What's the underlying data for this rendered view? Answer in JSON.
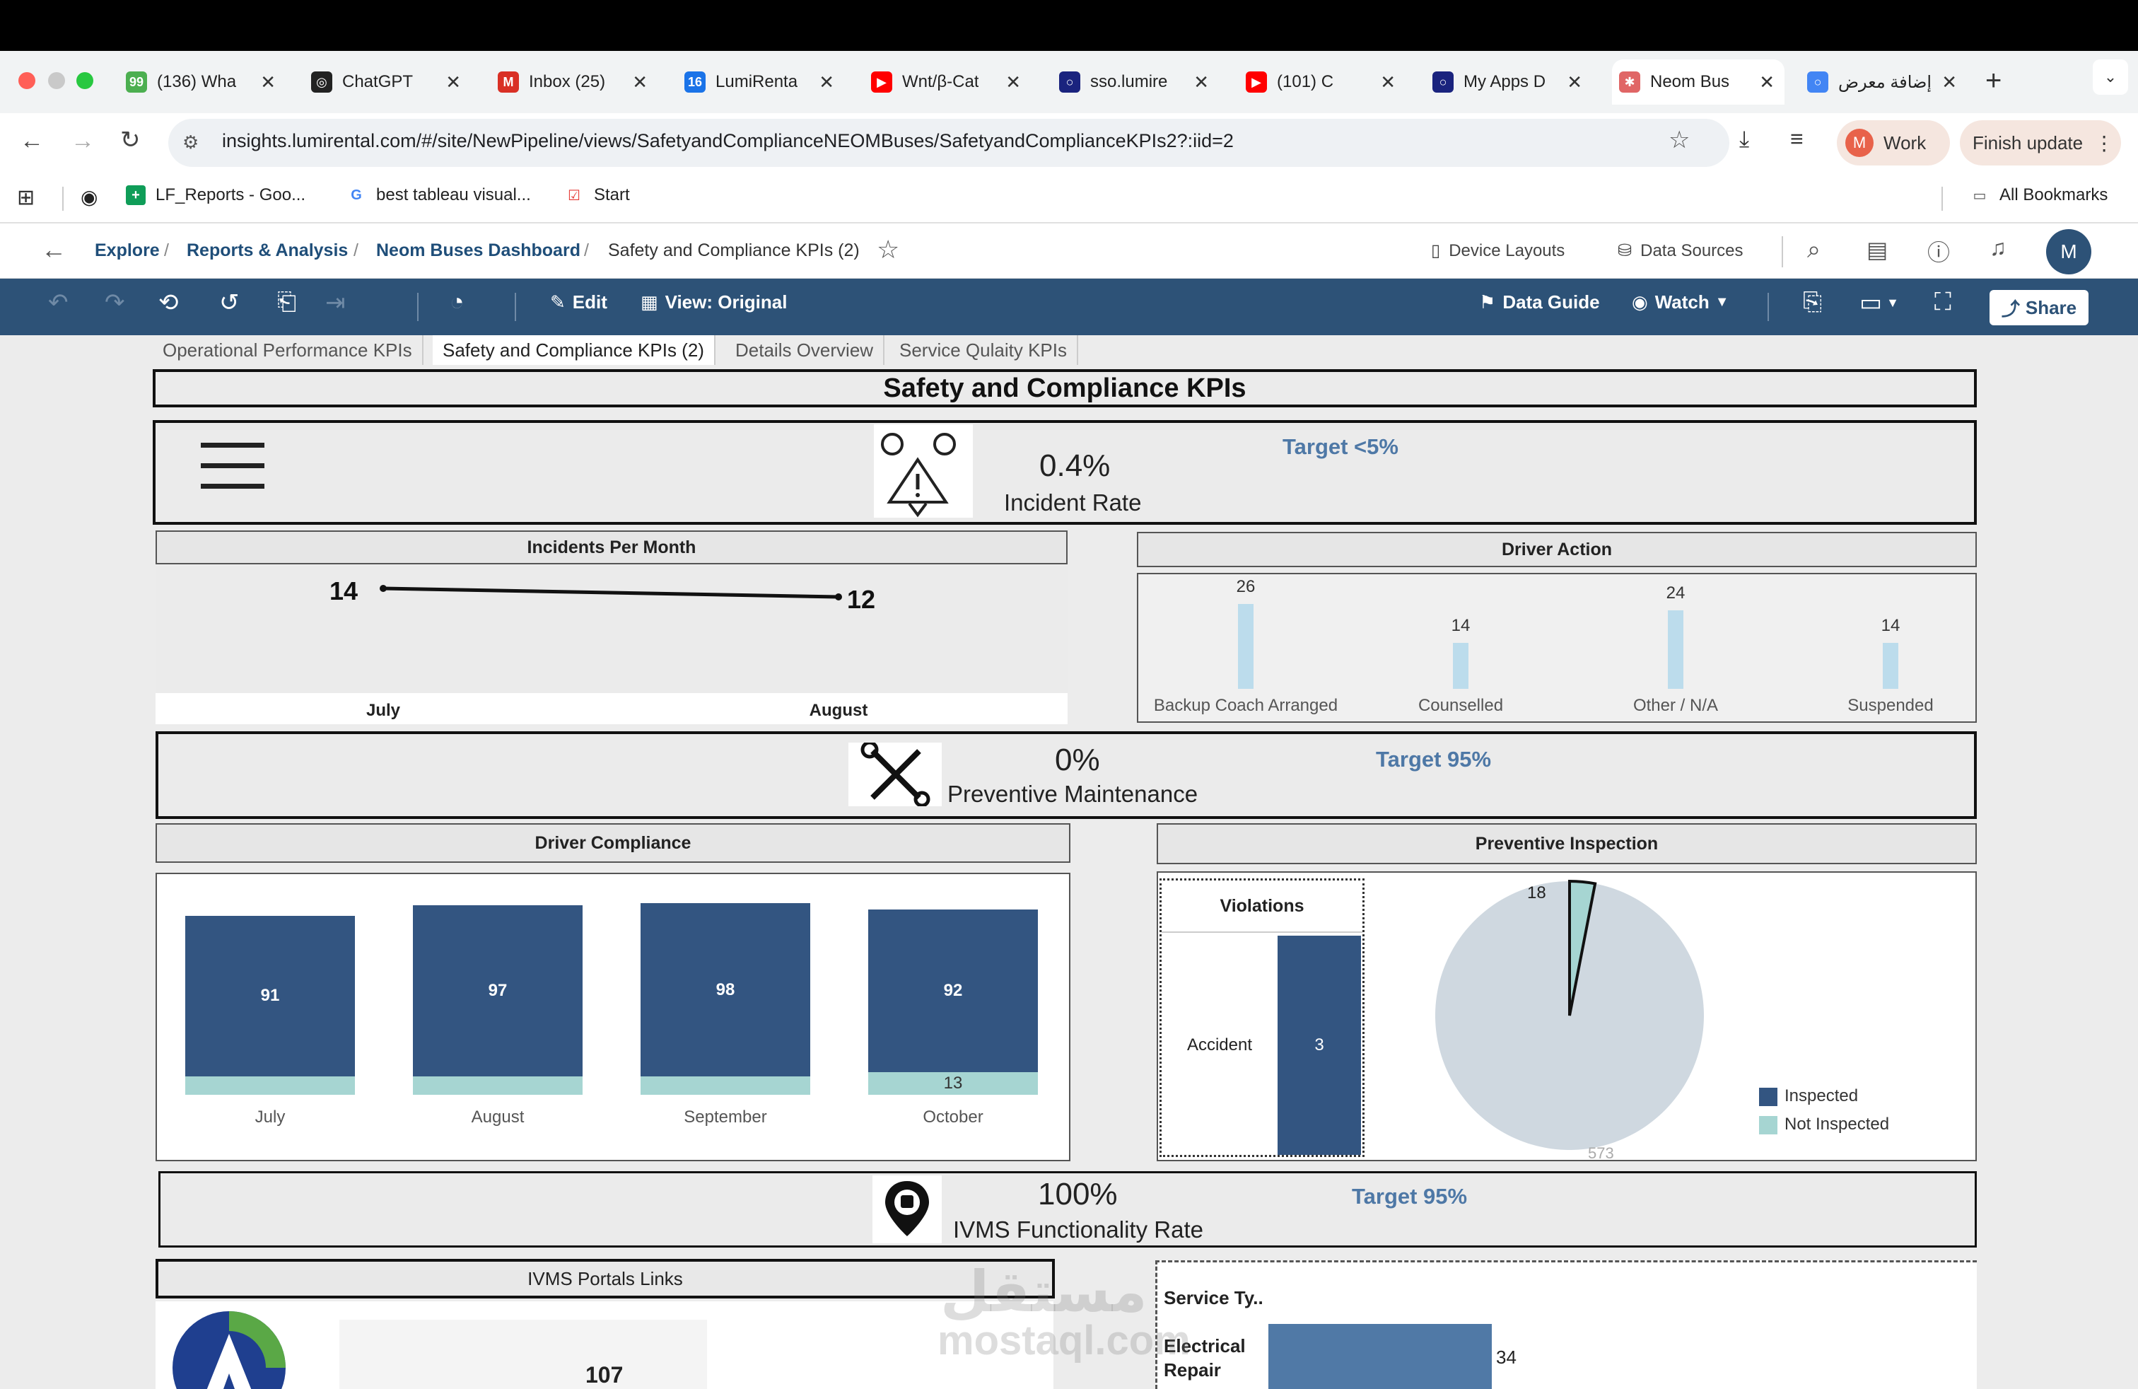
{
  "browser": {
    "tabs": [
      {
        "title": "(136) Wha",
        "color": "#4caf50",
        "glyph": "99"
      },
      {
        "title": "ChatGPT",
        "color": "#222222",
        "glyph": "◎"
      },
      {
        "title": "Inbox (25)",
        "color": "#d93025",
        "glyph": "M"
      },
      {
        "title": "LumiRenta",
        "color": "#1a73e8",
        "glyph": "16"
      },
      {
        "title": "Wnt/β-Cat",
        "color": "#ff0000",
        "glyph": "▶"
      },
      {
        "title": "sso.lumire",
        "color": "#1a237e",
        "glyph": "○"
      },
      {
        "title": "(101) C",
        "color": "#ff0000",
        "glyph": "▶"
      },
      {
        "title": "My Apps D",
        "color": "#1a237e",
        "glyph": "○"
      },
      {
        "title": "Neom Bus",
        "color": "#e06666",
        "glyph": "✱"
      },
      {
        "title": "إضافة معرض",
        "color": "#4285f4",
        "glyph": "○"
      }
    ],
    "url": "insights.lumirental.com/#/site/NewPipeline/views/SafetyandComplianceNEOMBuses/SafetyandComplianceKPIs2?:iid=2",
    "profile_label": "Work",
    "profile_initial": "M",
    "update_label": "Finish update",
    "bookmarks": [
      "LF_Reports - Goo...",
      "best tableau visual...",
      "Start"
    ],
    "all_bookmarks": "All Bookmarks"
  },
  "tableau": {
    "breadcrumb": [
      "Explore",
      "Reports & Analysis",
      "Neom Buses Dashboard",
      "Safety and Compliance KPIs (2)"
    ],
    "header_actions": [
      "Device Layouts",
      "Data Sources"
    ],
    "avatar": "M",
    "toolbar": {
      "edit": "Edit",
      "view": "View: Original",
      "data_guide": "Data Guide",
      "watch": "Watch",
      "share": "Share"
    },
    "sheet_tabs": [
      "Operational Performance KPIs",
      "Safety and Compliance KPIs (2)",
      "Details Overview",
      "Service Qulaity KPIs"
    ]
  },
  "dashboard": {
    "title": "Safety and Compliance KPIs",
    "incident": {
      "value": "0.4%",
      "label": "Incident Rate",
      "target": "Target <5%"
    },
    "maintenance": {
      "value": "0%",
      "label": "Preventive Maintenance",
      "target": "Target 95%"
    },
    "ivms": {
      "value": "100%",
      "label": "IVMS Functionality Rate",
      "target": "Target 95%"
    },
    "incidents_per_month": {
      "title": "Incidents Per Month"
    },
    "driver_action": {
      "title": "Driver Action"
    },
    "driver_compliance": {
      "title": "Driver Compliance"
    },
    "preventive_inspection": {
      "title": "Preventive Inspection",
      "violations_title": "Violations",
      "violations_row": "Accident",
      "violations_value": "3"
    },
    "ivms_links": {
      "title": "IVMS Portals Links",
      "value": "107"
    },
    "service_type": {
      "title": "Service Ty..",
      "row1": "Electrical",
      "row2": "Repair",
      "value": "34"
    },
    "watermark": [
      "مستقل",
      "mostaql.com"
    ]
  },
  "chart_data": [
    {
      "type": "line",
      "title": "Incidents Per Month",
      "categories": [
        "July",
        "August"
      ],
      "values": [
        14,
        12
      ]
    },
    {
      "type": "bar",
      "title": "Driver Action",
      "categories": [
        "Backup Coach Arranged",
        "Counselled",
        "Other / N/A",
        "Suspended"
      ],
      "values": [
        26,
        14,
        24,
        14
      ]
    },
    {
      "type": "bar",
      "title": "Driver Compliance",
      "categories": [
        "July",
        "August",
        "September",
        "October"
      ],
      "series": [
        {
          "values": [
            91,
            97,
            98,
            92
          ],
          "color": "#335581"
        },
        {
          "values": [
            null,
            null,
            null,
            13
          ],
          "color": "#a6d5d2"
        }
      ]
    },
    {
      "type": "pie",
      "title": "Preventive Inspection",
      "labels": [
        "Inspected",
        "Not Inspected"
      ],
      "values": [
        573,
        18
      ],
      "colors": [
        "#cfd8e0",
        "#a6d5d2"
      ],
      "legend": [
        {
          "name": "Inspected",
          "color": "#335581"
        },
        {
          "name": "Not Inspected",
          "color": "#a6d5d2"
        }
      ]
    }
  ]
}
